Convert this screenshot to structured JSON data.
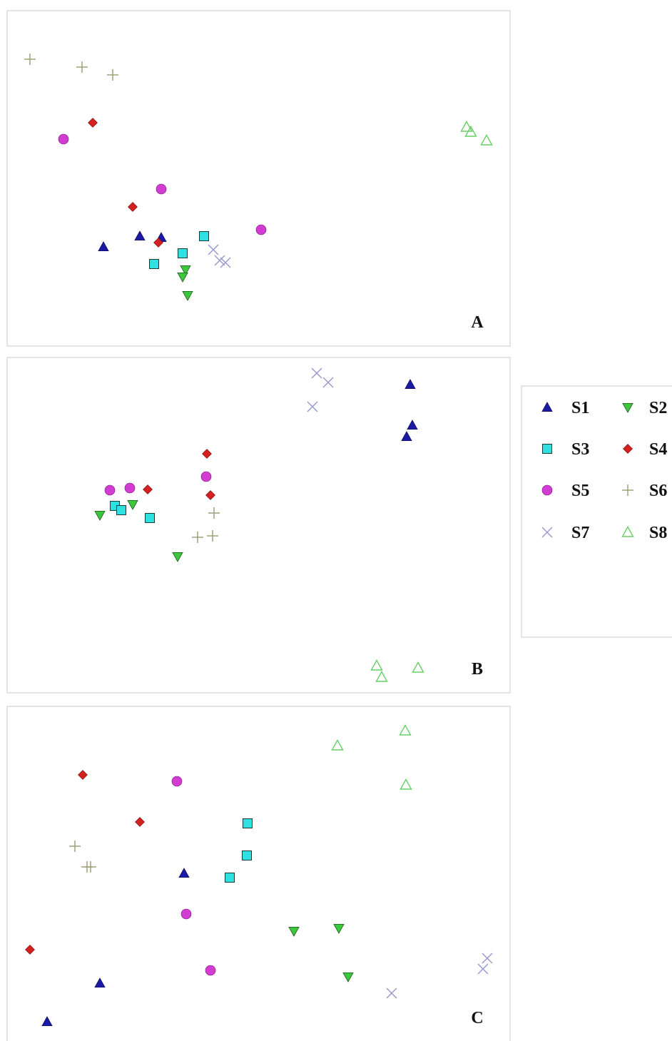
{
  "chart_data": [
    {
      "type": "scatter",
      "panel_label": "A",
      "xlim": [
        0,
        705
      ],
      "ylim": [
        0,
        470
      ],
      "series": [
        {
          "name": "S1",
          "points": [
            [
              135,
              331
            ],
            [
              186,
              316
            ],
            [
              216,
              318
            ]
          ]
        },
        {
          "name": "S2",
          "points": [
            [
              250,
              363
            ],
            [
              246,
              373
            ],
            [
              253,
              399
            ]
          ]
        },
        {
          "name": "S3",
          "points": [
            [
              206,
              355
            ],
            [
              246,
              340
            ],
            [
              276,
              316
            ]
          ]
        },
        {
          "name": "S4",
          "points": [
            [
              120,
              157
            ],
            [
              176,
              275
            ],
            [
              212,
              325
            ]
          ]
        },
        {
          "name": "S5",
          "points": [
            [
              79,
              180
            ],
            [
              216,
              250
            ],
            [
              356,
              307
            ]
          ]
        },
        {
          "name": "S6",
          "points": [
            [
              32,
              68
            ],
            [
              105,
              79
            ],
            [
              148,
              90
            ]
          ]
        },
        {
          "name": "S7",
          "points": [
            [
              289,
              335
            ],
            [
              298,
              350
            ],
            [
              306,
              353
            ]
          ]
        },
        {
          "name": "S8",
          "points": [
            [
              644,
              163
            ],
            [
              650,
              170
            ],
            [
              672,
              182
            ]
          ]
        }
      ]
    },
    {
      "type": "scatter",
      "panel_label": "B",
      "xlim": [
        0,
        705
      ],
      "ylim": [
        0,
        470
      ],
      "series": [
        {
          "name": "S1",
          "points": [
            [
              565,
              38
            ],
            [
              568,
              95
            ],
            [
              560,
              111
            ]
          ]
        },
        {
          "name": "S2",
          "points": [
            [
              130,
              221
            ],
            [
              176,
              206
            ],
            [
              239,
              279
            ]
          ]
        },
        {
          "name": "S3",
          "points": [
            [
              151,
              208
            ],
            [
              160,
              214
            ],
            [
              200,
              225
            ]
          ]
        },
        {
          "name": "S4",
          "points": [
            [
              280,
              135
            ],
            [
              197,
              185
            ],
            [
              285,
              193
            ]
          ]
        },
        {
          "name": "S5",
          "points": [
            [
              144,
              186
            ],
            [
              172,
              183
            ],
            [
              279,
              167
            ]
          ]
        },
        {
          "name": "S6",
          "points": [
            [
              290,
              218
            ],
            [
              267,
              252
            ],
            [
              288,
              250
            ]
          ]
        },
        {
          "name": "S7",
          "points": [
            [
              434,
              22
            ],
            [
              450,
              35
            ],
            [
              428,
              69
            ]
          ]
        },
        {
          "name": "S8",
          "points": [
            [
              518,
              432
            ],
            [
              525,
              448
            ],
            [
              576,
              435
            ]
          ]
        }
      ]
    },
    {
      "type": "scatter",
      "panel_label": "C",
      "xlim": [
        0,
        705
      ],
      "ylim": [
        0,
        470
      ],
      "series": [
        {
          "name": "S1",
          "points": [
            [
              248,
              234
            ],
            [
              130,
              388
            ],
            [
              56,
              442
            ]
          ]
        },
        {
          "name": "S2",
          "points": [
            [
              402,
              315
            ],
            [
              465,
              311
            ],
            [
              478,
              379
            ]
          ]
        },
        {
          "name": "S3",
          "points": [
            [
              337,
              164
            ],
            [
              336,
              209
            ],
            [
              312,
              240
            ]
          ]
        },
        {
          "name": "S4",
          "points": [
            [
              106,
              96
            ],
            [
              186,
              162
            ],
            [
              32,
              341
            ]
          ]
        },
        {
          "name": "S5",
          "points": [
            [
              238,
              105
            ],
            [
              251,
              291
            ],
            [
              285,
              370
            ]
          ]
        },
        {
          "name": "S6",
          "points": [
            [
              95,
              196
            ],
            [
              112,
              225
            ],
            [
              117,
              225
            ]
          ]
        },
        {
          "name": "S7",
          "points": [
            [
              539,
              402
            ],
            [
              667,
              368
            ],
            [
              673,
              353
            ]
          ]
        },
        {
          "name": "S8",
          "points": [
            [
              463,
              55
            ],
            [
              558,
              34
            ],
            [
              559,
              110
            ]
          ]
        }
      ]
    }
  ],
  "legend": {
    "placement": "right",
    "entries": [
      {
        "name": "S1",
        "marker": "triangle-up",
        "color": "#1a1aa6"
      },
      {
        "name": "S2",
        "marker": "triangle-down",
        "color": "#3cc83c"
      },
      {
        "name": "S3",
        "marker": "square",
        "color": "#2fe0e0"
      },
      {
        "name": "S4",
        "marker": "diamond",
        "color": "#d42020"
      },
      {
        "name": "S5",
        "marker": "circle",
        "color": "#d23cd2"
      },
      {
        "name": "S6",
        "marker": "plus",
        "color": "#9a9a6e"
      },
      {
        "name": "S7",
        "marker": "cross",
        "color": "#9a9ad0"
      },
      {
        "name": "S8",
        "marker": "triangle-open",
        "color": "#66d066"
      }
    ]
  }
}
